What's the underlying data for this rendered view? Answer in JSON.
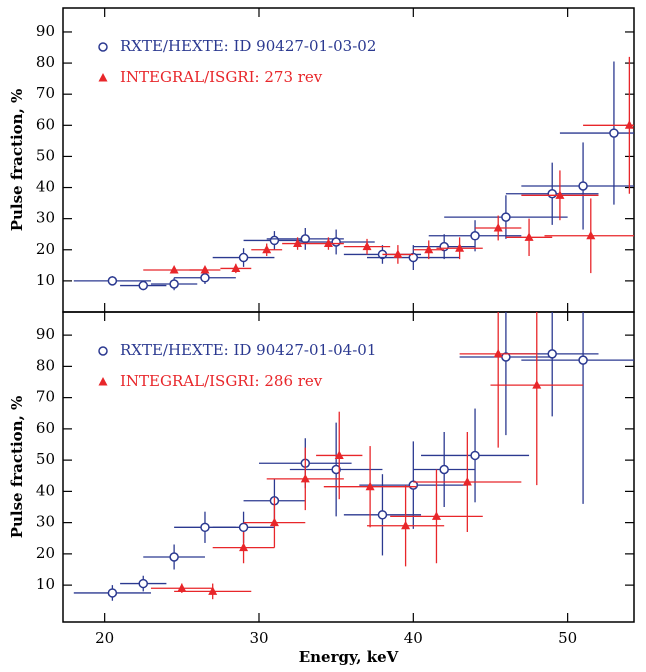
{
  "chart_data": [
    {
      "type": "errorbar",
      "ylabel": "Pulse fraction, %",
      "xlim": [
        17.3,
        54.3
      ],
      "ylim": [
        0,
        97.7
      ],
      "yticks": [
        10,
        20,
        30,
        40,
        50,
        60,
        70,
        80,
        90
      ],
      "series": [
        {
          "name": "RXTE/HEXTE: ID 90427-01-03-02",
          "color": "#2b3990",
          "marker": "circle",
          "x": [
            20.5,
            22.5,
            24.5,
            26.5,
            29,
            31,
            33,
            35,
            38,
            40,
            42,
            44,
            46,
            49,
            51,
            53
          ],
          "values": [
            10,
            8.5,
            9,
            11,
            17.5,
            23,
            23.5,
            22.5,
            18.5,
            17.5,
            21,
            24.5,
            30.5,
            38,
            40.5,
            57.5
          ],
          "xerr": [
            2.5,
            1.5,
            1.5,
            2,
            2,
            2,
            2.5,
            2.5,
            2.5,
            3,
            2,
            3,
            4,
            3,
            4,
            3.5
          ],
          "yerr": [
            1.5,
            1.5,
            2,
            2,
            3,
            3,
            3.5,
            4,
            3,
            4,
            4,
            5,
            7,
            10,
            14,
            23
          ]
        },
        {
          "name": "INTEGRAL/ISGRI: 273 rev",
          "color": "#e8262a",
          "marker": "triangle",
          "x": [
            24.5,
            26.5,
            28.5,
            30.5,
            32.5,
            34.5,
            37,
            39,
            41,
            43,
            45.5,
            47.5,
            49.5,
            51.5,
            54
          ],
          "values": [
            13.5,
            13.5,
            14,
            20,
            22,
            22,
            21,
            18.5,
            20,
            20.5,
            27,
            24,
            37.5,
            24.5,
            60
          ],
          "xerr": [
            2,
            1,
            1,
            1,
            1,
            1,
            1.5,
            1,
            1,
            1.5,
            1.5,
            1.5,
            2.5,
            3,
            3
          ],
          "yerr": [
            1,
            1,
            1.5,
            2,
            2,
            2,
            2.5,
            3,
            3,
            3.5,
            4,
            6,
            8,
            12,
            22
          ]
        }
      ]
    },
    {
      "type": "errorbar",
      "ylabel": "Pulse fraction, %",
      "xlabel": "Energy, keV",
      "xlim": [
        17.3,
        54.3
      ],
      "ylim": [
        -1.8,
        97.4
      ],
      "xticks": [
        20,
        30,
        40,
        50
      ],
      "yticks": [
        10,
        20,
        30,
        40,
        50,
        60,
        70,
        80,
        90
      ],
      "series": [
        {
          "name": "RXTE/HEXTE: ID 90427-01-04-01",
          "color": "#2b3990",
          "marker": "circle",
          "x": [
            20.5,
            22.5,
            24.5,
            26.5,
            29,
            31,
            33,
            35,
            38,
            40,
            42,
            44,
            46,
            49,
            51
          ],
          "values": [
            7.5,
            10.5,
            19,
            28.5,
            28.5,
            37,
            49,
            47,
            32.5,
            42,
            47,
            51.5,
            83,
            84,
            82
          ],
          "xerr": [
            2.5,
            1.5,
            2,
            2,
            2,
            2,
            3,
            3,
            2.5,
            3.5,
            2,
            3.5,
            3,
            3,
            4
          ],
          "yerr": [
            2.5,
            2.5,
            4,
            5,
            5,
            7,
            8,
            15,
            13,
            14,
            12,
            15,
            25,
            20,
            46
          ]
        },
        {
          "name": "INTEGRAL/ISGRI: 286 rev",
          "color": "#e8262a",
          "marker": "triangle",
          "x": [
            25,
            27,
            29,
            31,
            33,
            35.2,
            37.2,
            39.5,
            41.5,
            43.5,
            45.5,
            48
          ],
          "values": [
            9,
            8,
            22,
            30,
            44,
            51.5,
            41.5,
            29,
            32,
            43,
            84,
            74
          ],
          "xerr": [
            2,
            2.5,
            2,
            2,
            2.5,
            1.5,
            3,
            2.5,
            3,
            3.5,
            2.5,
            3
          ],
          "yerr": [
            1.5,
            2.5,
            5,
            8,
            10,
            14,
            13,
            13,
            15,
            16,
            30,
            32
          ]
        }
      ]
    }
  ]
}
